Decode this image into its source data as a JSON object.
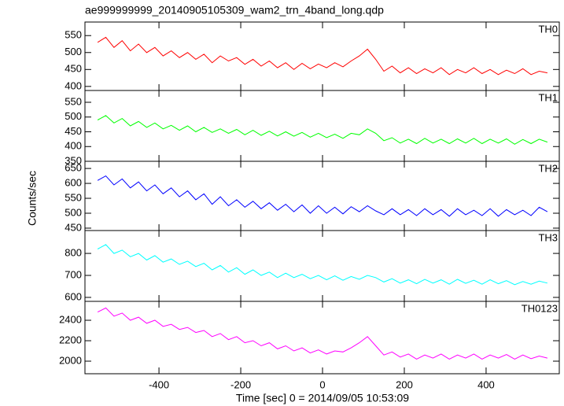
{
  "chart_data": {
    "type": "line",
    "title": "ae999999999_20140905105309_wam2_trn_4band_long.qdp",
    "x_label": "Time [sec] 0 = 2014/09/05 10:53:09",
    "y_label": "Counts/sec",
    "xlim": [
      -581,
      579
    ],
    "xticks": [
      -400,
      -200,
      0,
      200,
      400
    ],
    "x": [
      -550,
      -530,
      -510,
      -490,
      -470,
      -450,
      -430,
      -410,
      -390,
      -370,
      -350,
      -330,
      -310,
      -290,
      -270,
      -250,
      -230,
      -210,
      -190,
      -170,
      -150,
      -130,
      -110,
      -90,
      -70,
      -50,
      -30,
      -10,
      10,
      30,
      50,
      70,
      90,
      110,
      130,
      150,
      170,
      190,
      210,
      230,
      250,
      270,
      290,
      310,
      330,
      350,
      370,
      390,
      410,
      430,
      450,
      470,
      490,
      510,
      530,
      550
    ],
    "series": [
      {
        "name": "TH0",
        "color": "#ff0000",
        "ylim": [
          388,
          590
        ],
        "yticks": [
          400,
          450,
          500,
          550
        ],
        "values": [
          530,
          545,
          515,
          535,
          505,
          525,
          500,
          515,
          490,
          505,
          485,
          500,
          480,
          495,
          470,
          490,
          475,
          485,
          465,
          480,
          460,
          475,
          455,
          470,
          450,
          468,
          452,
          466,
          455,
          470,
          458,
          475,
          490,
          510,
          480,
          445,
          460,
          440,
          455,
          438,
          452,
          440,
          455,
          435,
          450,
          440,
          455,
          438,
          450,
          435,
          448,
          438,
          452,
          435,
          445,
          440
        ]
      },
      {
        "name": "TH1",
        "color": "#00ff00",
        "ylim": [
          350,
          590
        ],
        "yticks": [
          350,
          400,
          450,
          500,
          550
        ],
        "values": [
          490,
          505,
          480,
          495,
          470,
          485,
          465,
          480,
          460,
          472,
          455,
          470,
          450,
          465,
          448,
          460,
          445,
          458,
          440,
          455,
          438,
          452,
          436,
          450,
          435,
          448,
          432,
          445,
          430,
          442,
          428,
          445,
          440,
          460,
          445,
          420,
          430,
          412,
          425,
          410,
          428,
          412,
          425,
          410,
          426,
          412,
          428,
          410,
          425,
          412,
          426,
          408,
          424,
          410,
          425,
          415
        ]
      },
      {
        "name": "TH2",
        "color": "#0000ff",
        "ylim": [
          442,
          674
        ],
        "yticks": [
          450,
          500,
          550,
          600,
          650
        ],
        "values": [
          610,
          625,
          595,
          615,
          585,
          605,
          575,
          595,
          565,
          585,
          555,
          575,
          545,
          565,
          530,
          555,
          525,
          545,
          520,
          540,
          515,
          535,
          510,
          530,
          505,
          528,
          500,
          525,
          500,
          520,
          498,
          522,
          505,
          525,
          508,
          495,
          515,
          495,
          512,
          492,
          515,
          495,
          512,
          490,
          515,
          495,
          510,
          492,
          515,
          490,
          512,
          495,
          510,
          492,
          520,
          505
        ]
      },
      {
        "name": "TH3",
        "color": "#00ffff",
        "ylim": [
          582,
          904
        ],
        "yticks": [
          600,
          700,
          800
        ],
        "values": [
          820,
          840,
          800,
          815,
          785,
          800,
          770,
          790,
          760,
          775,
          750,
          765,
          740,
          755,
          725,
          745,
          715,
          735,
          705,
          725,
          700,
          715,
          690,
          710,
          690,
          705,
          685,
          700,
          680,
          698,
          678,
          695,
          682,
          700,
          690,
          670,
          685,
          665,
          680,
          662,
          682,
          665,
          680,
          660,
          682,
          664,
          678,
          660,
          680,
          662,
          676,
          658,
          672,
          660,
          674,
          665
        ]
      },
      {
        "name": "TH0123",
        "color": "#ff00ff",
        "ylim": [
          1877,
          2585
        ],
        "yticks": [
          2000,
          2200,
          2400
        ],
        "values": [
          2480,
          2520,
          2440,
          2470,
          2400,
          2430,
          2370,
          2400,
          2340,
          2360,
          2310,
          2330,
          2280,
          2300,
          2240,
          2270,
          2210,
          2240,
          2180,
          2200,
          2150,
          2180,
          2120,
          2150,
          2100,
          2130,
          2080,
          2110,
          2070,
          2100,
          2090,
          2130,
          2180,
          2240,
          2150,
          2060,
          2090,
          2040,
          2070,
          2020,
          2060,
          2030,
          2070,
          2020,
          2060,
          2030,
          2070,
          2020,
          2060,
          2030,
          2065,
          2020,
          2060,
          2025,
          2050,
          2030
        ]
      }
    ]
  }
}
